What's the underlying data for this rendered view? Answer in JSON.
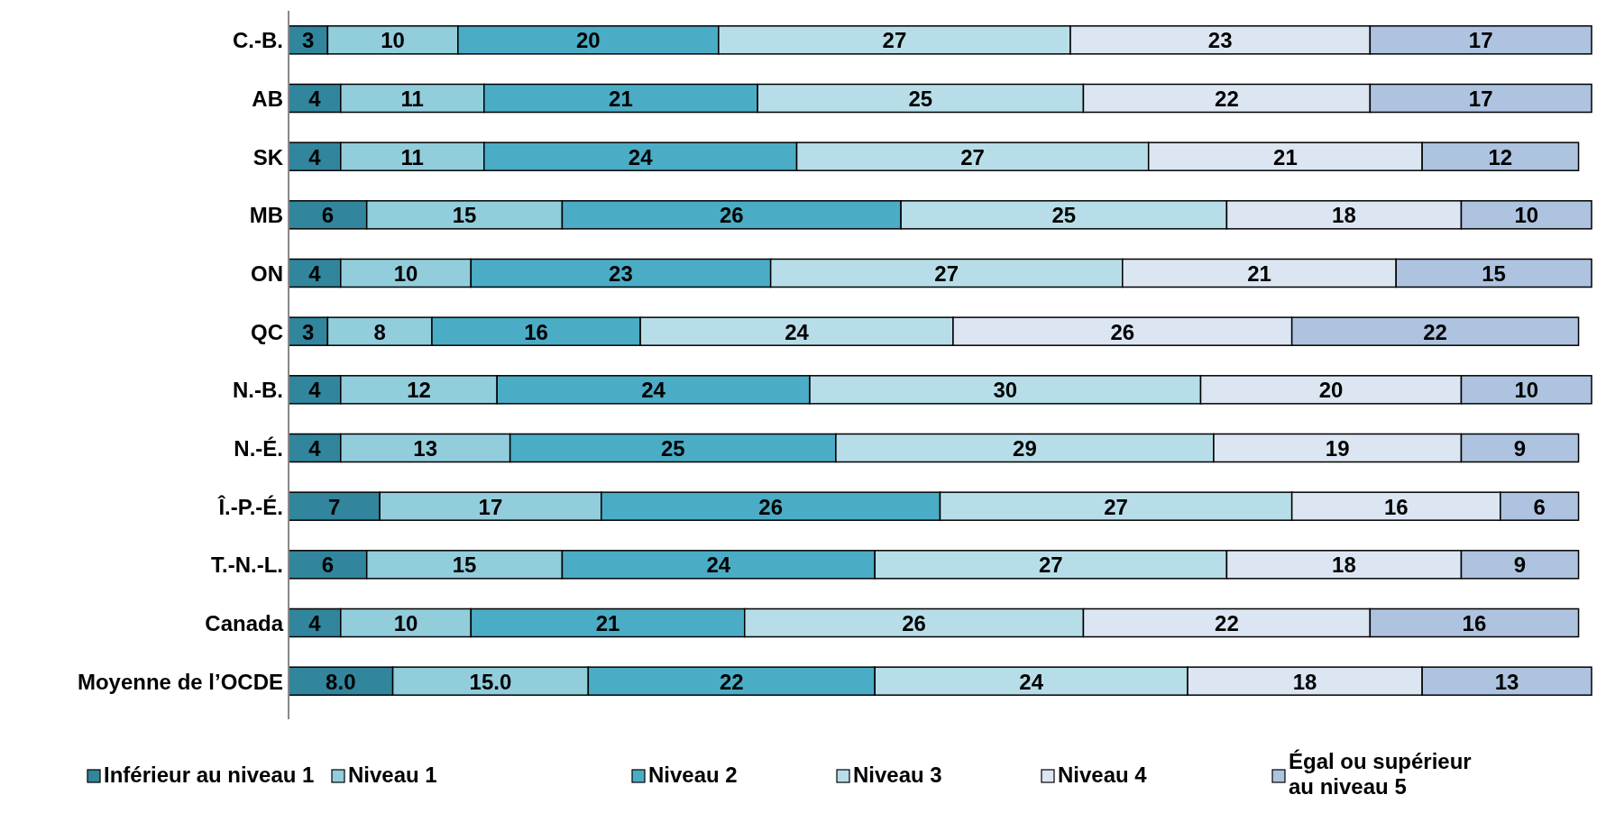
{
  "chart_data": {
    "type": "bar",
    "orientation": "horizontal",
    "stacked": true,
    "xlim": [
      0,
      100
    ],
    "tick_labels": "y",
    "legend": "bottom",
    "categories": [
      "C.-B.",
      "AB",
      "SK",
      "MB",
      "ON",
      "QC",
      "N.-B.",
      "N.-É.",
      "Î.-P.-É.",
      "T.-N.-L.",
      "Canada",
      "Moyenne de l’OCDE"
    ],
    "series": [
      {
        "name": "Inférieur au niveau 1",
        "color": "#31859c",
        "values": [
          3,
          4,
          4,
          6,
          4,
          3,
          4,
          4,
          7,
          6,
          4,
          8.0
        ],
        "value_labels": [
          "3",
          "4",
          "4",
          "6",
          "4",
          "3",
          "4",
          "4",
          "7",
          "6",
          "4",
          "8.0"
        ]
      },
      {
        "name": "Niveau 1",
        "color": "#92cddc",
        "values": [
          10,
          11,
          11,
          15,
          10,
          8,
          12,
          13,
          17,
          15,
          10,
          15.0
        ],
        "value_labels": [
          "10",
          "11",
          "11",
          "15",
          "10",
          "8",
          "12",
          "13",
          "17",
          "15",
          "10",
          "15.0"
        ]
      },
      {
        "name": "Niveau 2",
        "color": "#4bacc6",
        "values": [
          20,
          21,
          24,
          26,
          23,
          16,
          24,
          25,
          26,
          24,
          21,
          22
        ],
        "value_labels": [
          "20",
          "21",
          "24",
          "26",
          "23",
          "16",
          "24",
          "25",
          "26",
          "24",
          "21",
          "22"
        ]
      },
      {
        "name": "Niveau 3",
        "color": "#b7dee8",
        "values": [
          27,
          25,
          27,
          25,
          27,
          24,
          30,
          29,
          27,
          27,
          26,
          24
        ],
        "value_labels": [
          "27",
          "25",
          "27",
          "25",
          "27",
          "24",
          "30",
          "29",
          "27",
          "27",
          "26",
          "24"
        ]
      },
      {
        "name": "Niveau 4",
        "color": "#dce6f2",
        "values": [
          23,
          22,
          21,
          18,
          21,
          26,
          20,
          19,
          16,
          18,
          22,
          18
        ],
        "value_labels": [
          "23",
          "22",
          "21",
          "18",
          "21",
          "26",
          "20",
          "19",
          "16",
          "18",
          "22",
          "18"
        ]
      },
      {
        "name": "Égal ou supérieur au niveau 5",
        "color": "#adc3df",
        "values": [
          17,
          17,
          12,
          10,
          15,
          22,
          10,
          9,
          6,
          9,
          16,
          13
        ],
        "value_labels": [
          "17",
          "17",
          "12",
          "10",
          "15",
          "22",
          "10",
          "9",
          "6",
          "9",
          "16",
          "13"
        ]
      }
    ]
  }
}
